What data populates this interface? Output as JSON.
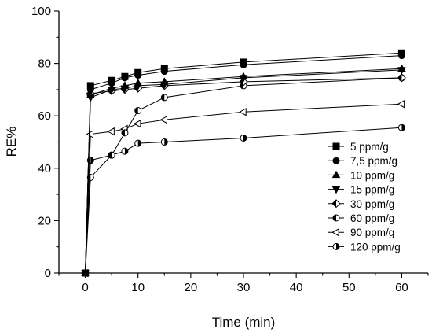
{
  "chart_data": {
    "type": "line",
    "title": "",
    "xlabel": "Time (min)",
    "ylabel": "RE%",
    "xlim": [
      -5,
      65
    ],
    "ylim": [
      0,
      100
    ],
    "xticks": [
      0,
      10,
      20,
      30,
      40,
      50,
      60
    ],
    "yticks": [
      0,
      20,
      40,
      60,
      80,
      100
    ],
    "x": [
      0,
      1,
      5,
      7.5,
      10,
      15,
      30,
      60
    ],
    "legend_position": "bottom-right",
    "grid": false,
    "series": [
      {
        "name": "5 ppm/g",
        "marker": "square",
        "values": [
          0,
          71.5,
          73.5,
          75,
          76.5,
          78,
          80.5,
          84
        ]
      },
      {
        "name": "7,5 ppm/g",
        "marker": "circle",
        "values": [
          0,
          70,
          72.5,
          74.5,
          75.5,
          77,
          79.5,
          83
        ]
      },
      {
        "name": "10 ppm/g",
        "marker": "triangle-up",
        "values": [
          0,
          68,
          70.5,
          71.5,
          72.5,
          73,
          75,
          78
        ]
      },
      {
        "name": "15 ppm/g",
        "marker": "triangle-down",
        "values": [
          0,
          67,
          70,
          70.5,
          71.5,
          72,
          74.5,
          77.5
        ]
      },
      {
        "name": "30 ppm/g",
        "marker": "diamond-half",
        "values": [
          0,
          68.5,
          69.5,
          70,
          70.5,
          71.5,
          73,
          74.5
        ]
      },
      {
        "name": "60 ppm/g",
        "marker": "circle-left",
        "values": [
          0,
          36.5,
          45,
          53.5,
          62,
          67,
          71.5,
          74.5
        ]
      },
      {
        "name": "90 ppm/g",
        "marker": "triangle-left",
        "values": [
          0,
          53,
          54,
          55,
          57,
          58.5,
          61.5,
          64.5
        ]
      },
      {
        "name": "120 ppm/g",
        "marker": "circle-right",
        "values": [
          0,
          43,
          45,
          46.5,
          49.5,
          50,
          51.5,
          55.5
        ]
      }
    ]
  }
}
